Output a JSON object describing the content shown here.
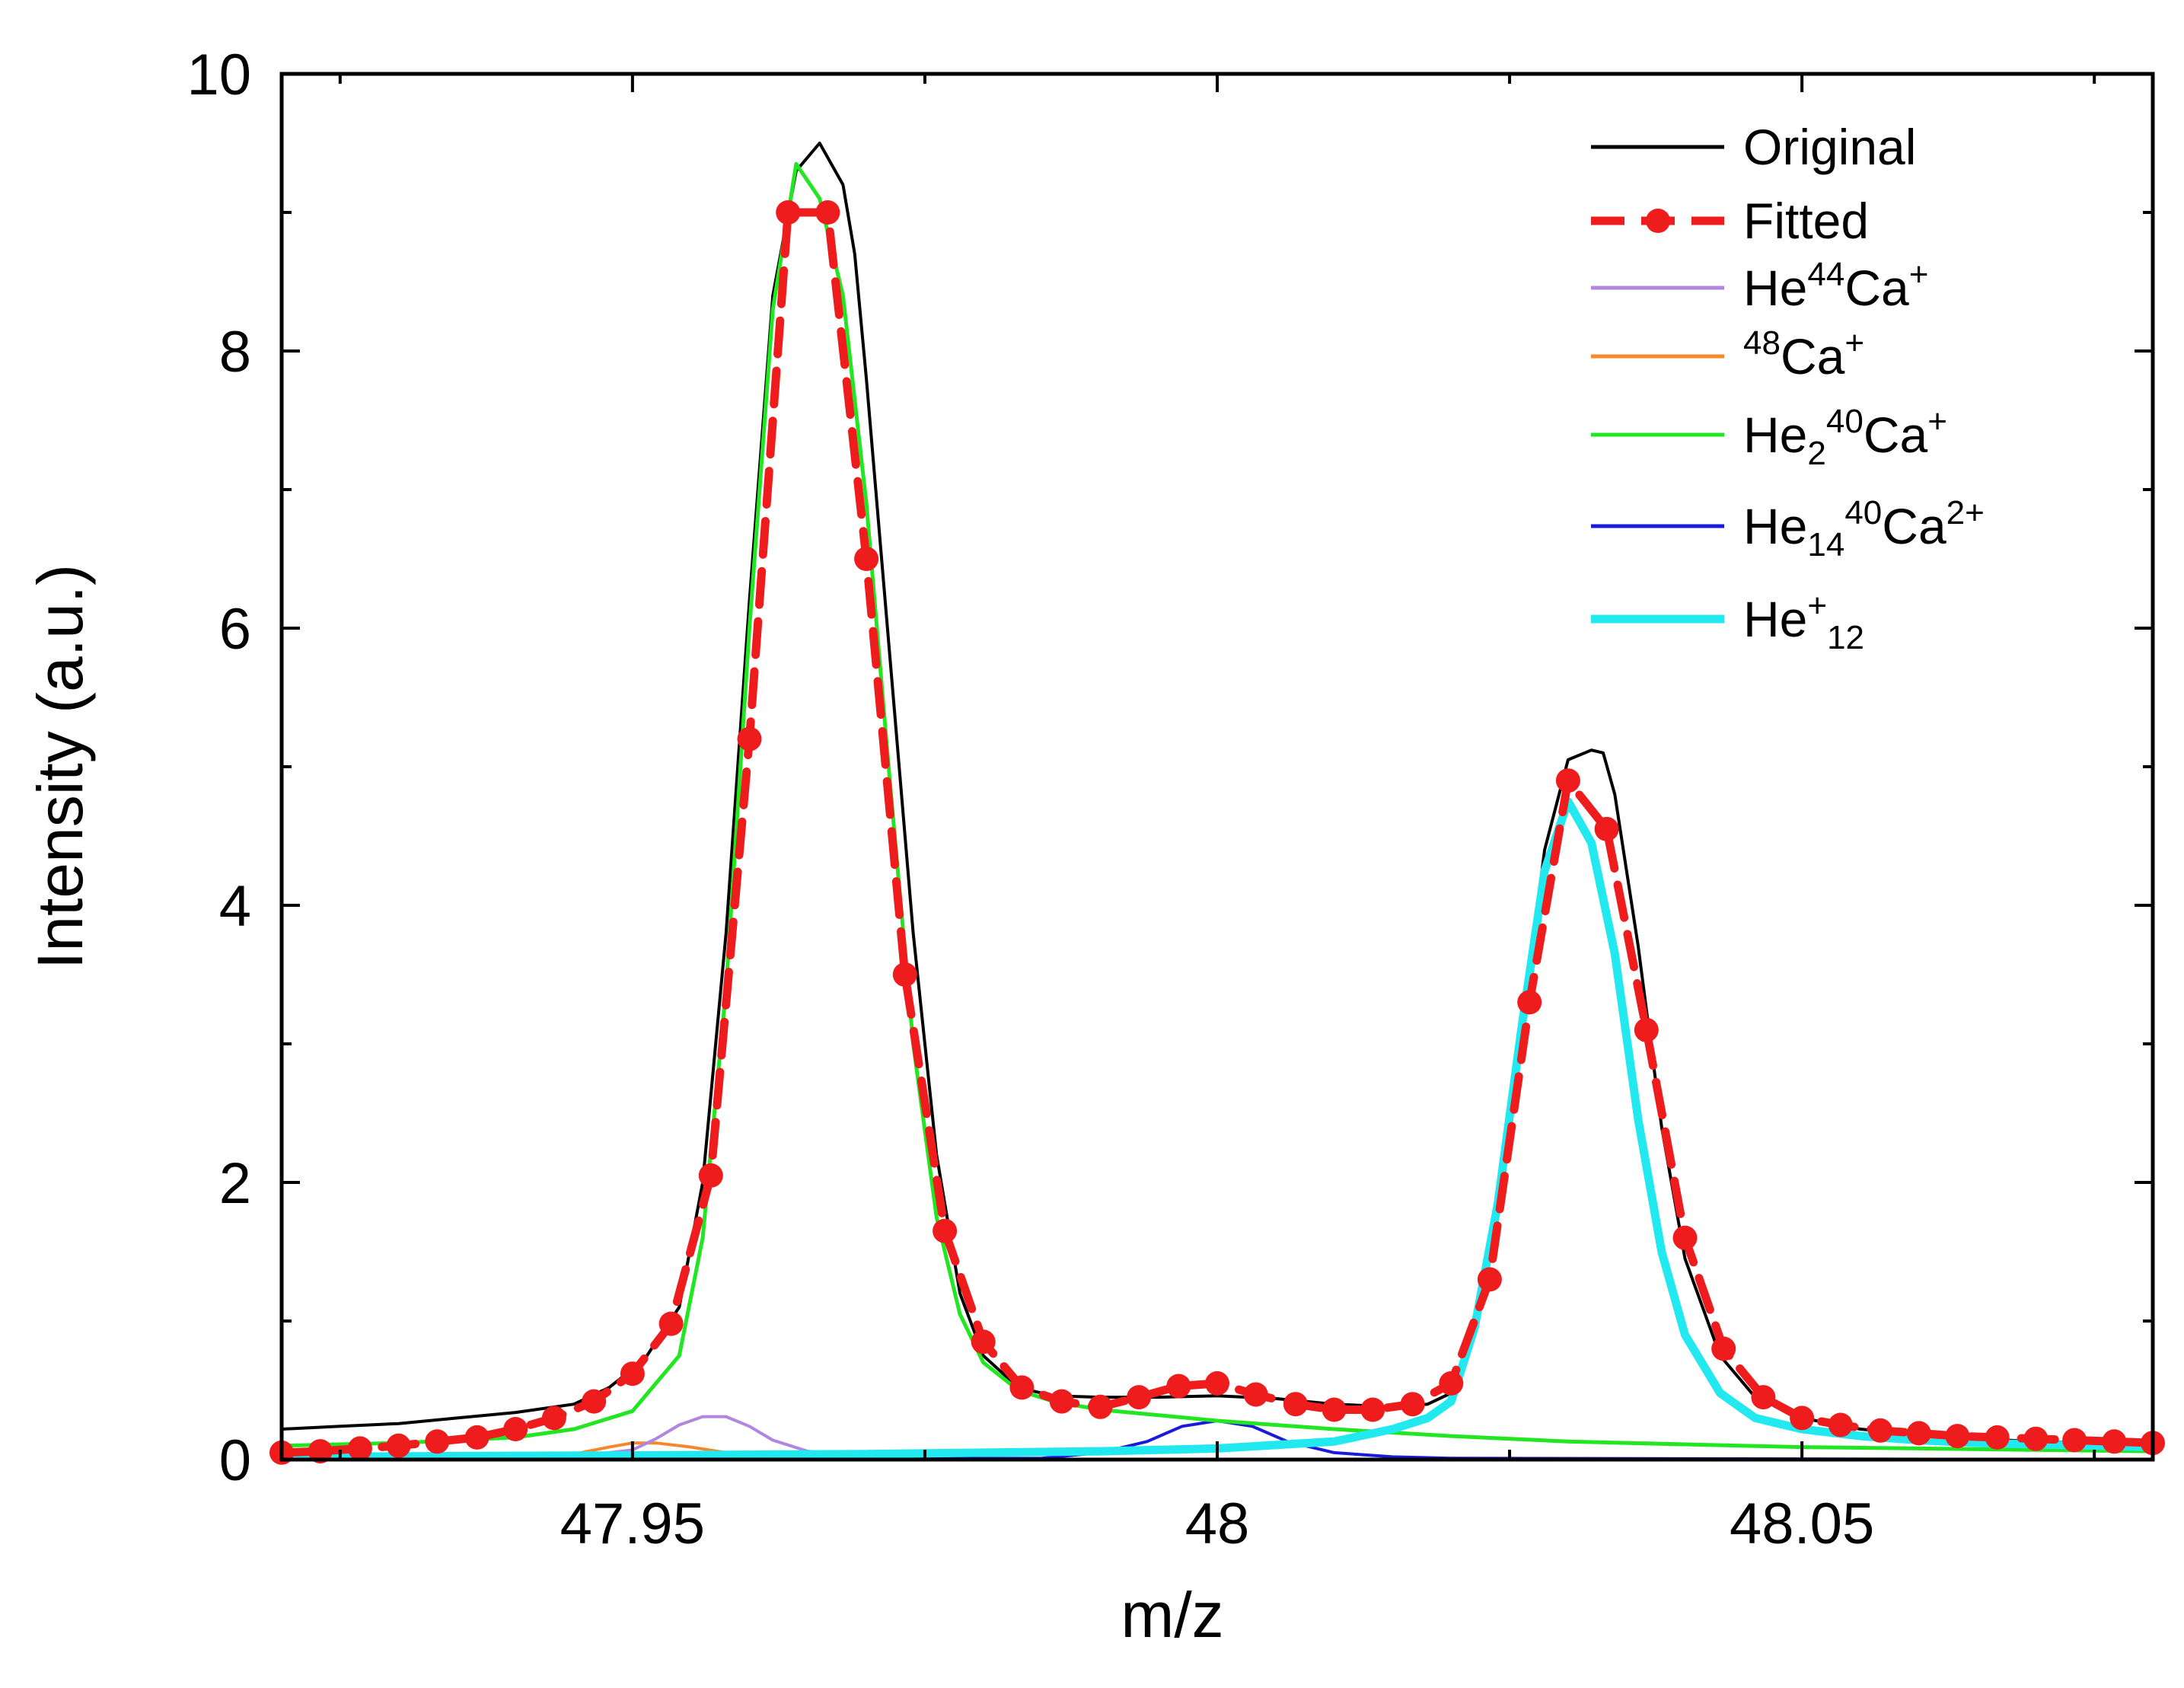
{
  "chart_data": {
    "type": "line",
    "title": "",
    "xlabel": "m/z",
    "ylabel": "Intensity (a.u.)",
    "xlim": [
      47.92,
      48.08
    ],
    "ylim": [
      0,
      10
    ],
    "xticks": [
      47.95,
      48,
      48.05
    ],
    "xtick_labels": [
      "47.95",
      "48",
      "48.05"
    ],
    "yticks": [
      0,
      2,
      4,
      6,
      8,
      10
    ],
    "ytick_labels": [
      "0",
      "2",
      "4",
      "6",
      "8",
      "10"
    ],
    "grid": false,
    "legend_position": "top-right",
    "series": [
      {
        "name": "Original",
        "color": "#000000",
        "style": "solid",
        "x": [
          47.92,
          47.925,
          47.93,
          47.935,
          47.94,
          47.945,
          47.948,
          47.951,
          47.954,
          47.956,
          47.958,
          47.96,
          47.962,
          47.964,
          47.966,
          47.968,
          47.969,
          47.97,
          47.972,
          47.974,
          47.976,
          47.978,
          47.98,
          47.983,
          47.986,
          47.99,
          47.995,
          48.0,
          48.005,
          48.01,
          48.015,
          48.018,
          48.02,
          48.022,
          48.024,
          48.026,
          48.028,
          48.03,
          48.032,
          48.033,
          48.034,
          48.036,
          48.038,
          48.04,
          48.043,
          48.046,
          48.05,
          48.055,
          48.06,
          48.065,
          48.07,
          48.075,
          48.08
        ],
        "y": [
          0.22,
          0.24,
          0.26,
          0.3,
          0.34,
          0.4,
          0.52,
          0.72,
          1.1,
          2.0,
          3.8,
          6.2,
          8.4,
          9.3,
          9.5,
          9.2,
          8.7,
          7.8,
          5.8,
          3.8,
          2.2,
          1.2,
          0.75,
          0.52,
          0.46,
          0.45,
          0.45,
          0.46,
          0.44,
          0.4,
          0.38,
          0.4,
          0.48,
          0.95,
          1.8,
          3.1,
          4.4,
          5.05,
          5.12,
          5.1,
          4.8,
          3.7,
          2.4,
          1.45,
          0.75,
          0.45,
          0.3,
          0.22,
          0.18,
          0.15,
          0.13,
          0.12,
          0.11
        ]
      },
      {
        "name": "Fitted",
        "color": "#ee1c1c",
        "style": "dashed-markers",
        "x": [
          47.92,
          47.9233,
          47.9267,
          47.93,
          47.9333,
          47.9367,
          47.94,
          47.9433,
          47.9467,
          47.95,
          47.9533,
          47.9567,
          47.96,
          47.9633,
          47.9667,
          47.97,
          47.9733,
          47.9767,
          47.98,
          47.9833,
          47.9867,
          47.99,
          47.9933,
          47.9967,
          48.0,
          48.0033,
          48.0067,
          48.01,
          48.0133,
          48.0167,
          48.02,
          48.0233,
          48.0267,
          48.03,
          48.0333,
          48.0367,
          48.04,
          48.0433,
          48.0467,
          48.05,
          48.0533,
          48.0567,
          48.06,
          48.0633,
          48.0667,
          48.07,
          48.0733,
          48.0767,
          48.08
        ],
        "y": [
          0.05,
          0.06,
          0.08,
          0.1,
          0.13,
          0.16,
          0.22,
          0.3,
          0.42,
          0.62,
          0.98,
          2.05,
          5.2,
          9.0,
          9.0,
          6.5,
          3.5,
          1.65,
          0.85,
          0.52,
          0.42,
          0.38,
          0.45,
          0.53,
          0.55,
          0.47,
          0.4,
          0.36,
          0.36,
          0.4,
          0.55,
          1.3,
          3.3,
          4.9,
          4.55,
          3.1,
          1.6,
          0.8,
          0.45,
          0.3,
          0.25,
          0.21,
          0.19,
          0.17,
          0.16,
          0.15,
          0.14,
          0.13,
          0.12
        ]
      },
      {
        "name": "He44Ca+",
        "color": "#b086e0",
        "style": "solid",
        "x": [
          47.92,
          47.945,
          47.95,
          47.952,
          47.954,
          47.956,
          47.958,
          47.96,
          47.962,
          47.965,
          47.97,
          47.98,
          48.08
        ],
        "y": [
          0.0,
          0.02,
          0.07,
          0.15,
          0.25,
          0.31,
          0.31,
          0.24,
          0.14,
          0.06,
          0.02,
          0.0,
          0.0
        ]
      },
      {
        "name": "48Ca+",
        "color": "#f5882a",
        "style": "solid",
        "x": [
          47.92,
          47.94,
          47.945,
          47.948,
          47.95,
          47.952,
          47.955,
          47.958,
          47.962,
          47.97,
          48.08
        ],
        "y": [
          0.0,
          0.01,
          0.04,
          0.09,
          0.12,
          0.12,
          0.09,
          0.05,
          0.02,
          0.0,
          0.0
        ]
      },
      {
        "name": "He240Ca+",
        "color": "#22e622",
        "style": "solid",
        "x": [
          47.92,
          47.93,
          47.94,
          47.945,
          47.95,
          47.954,
          47.956,
          47.958,
          47.96,
          47.962,
          47.964,
          47.966,
          47.968,
          47.97,
          47.972,
          47.974,
          47.976,
          47.978,
          47.98,
          47.983,
          47.986,
          47.99,
          48.0,
          48.01,
          48.02,
          48.03,
          48.04,
          48.05,
          48.06,
          48.07,
          48.08
        ],
        "y": [
          0.1,
          0.12,
          0.16,
          0.22,
          0.35,
          0.75,
          1.6,
          3.4,
          6.0,
          8.3,
          9.35,
          9.1,
          8.4,
          6.9,
          4.9,
          3.0,
          1.75,
          1.05,
          0.7,
          0.5,
          0.42,
          0.36,
          0.28,
          0.22,
          0.17,
          0.13,
          0.11,
          0.09,
          0.08,
          0.07,
          0.06
        ]
      },
      {
        "name": "He1440Ca2+",
        "color": "#1a1adc",
        "style": "solid",
        "x": [
          47.92,
          47.985,
          47.99,
          47.994,
          47.997,
          48.0,
          48.003,
          48.006,
          48.01,
          48.015,
          48.02,
          48.08
        ],
        "y": [
          0.0,
          0.01,
          0.05,
          0.13,
          0.24,
          0.28,
          0.24,
          0.13,
          0.05,
          0.02,
          0.01,
          0.0
        ]
      },
      {
        "name": "He+12",
        "color": "#22e8f0",
        "style": "thick",
        "x": [
          47.92,
          47.95,
          47.97,
          47.99,
          48.0,
          48.01,
          48.015,
          48.018,
          48.02,
          48.022,
          48.024,
          48.026,
          48.028,
          48.03,
          48.032,
          48.034,
          48.036,
          48.038,
          48.04,
          48.043,
          48.046,
          48.05,
          48.055,
          48.06,
          48.065,
          48.07,
          48.075,
          48.08
        ],
        "y": [
          0.02,
          0.03,
          0.04,
          0.06,
          0.08,
          0.13,
          0.22,
          0.3,
          0.42,
          0.95,
          1.85,
          3.1,
          4.25,
          4.75,
          4.45,
          3.65,
          2.45,
          1.5,
          0.9,
          0.48,
          0.3,
          0.22,
          0.17,
          0.14,
          0.12,
          0.11,
          0.1,
          0.09
        ]
      }
    ]
  },
  "legend": {
    "original": "Original",
    "fitted": "Fitted",
    "he44ca": {
      "base": "He",
      "sup1": "44",
      "mid": "Ca",
      "sup2": "+"
    },
    "ca48": {
      "sup1": "48",
      "mid": "Ca",
      "sup2": "+"
    },
    "he2ca": {
      "base": "He",
      "sub": "2",
      "sup1": "40",
      "mid": "Ca",
      "sup2": "+"
    },
    "he14ca": {
      "base": "He",
      "sub": "14",
      "sup1": "40",
      "mid": "Ca",
      "sup2": "2+"
    },
    "he12": {
      "base": "He",
      "sup": "+",
      "sub": "12"
    }
  }
}
